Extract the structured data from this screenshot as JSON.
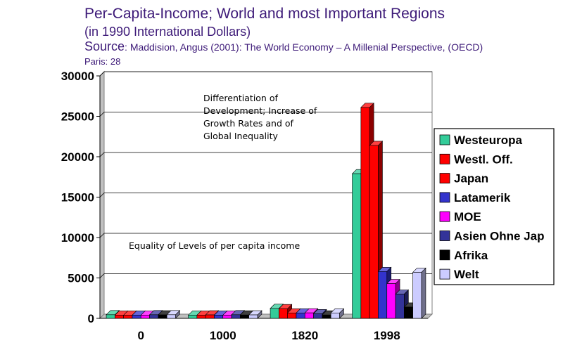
{
  "header": {
    "title": "Per-Capita-Income; World and most Important Regions",
    "subtitle": "(in 1990 International Dollars)",
    "source_label": "Source",
    "source_text": ": Maddision, Angus (2001): The World Economy – A Millenial Perspective, (OECD)",
    "source_line2": "Paris: 28"
  },
  "chart_data": {
    "type": "bar",
    "categories": [
      "0",
      "1000",
      "1820",
      "1998"
    ],
    "series": [
      {
        "name": "Westeuropa",
        "color": "#33cc99",
        "values": [
          450,
          400,
          1230,
          17900
        ]
      },
      {
        "name": "Westl. Off.",
        "color": "#ff0000",
        "values": [
          400,
          400,
          1200,
          26100
        ]
      },
      {
        "name": "Japan",
        "color": "#ff0000",
        "values": [
          400,
          430,
          670,
          21400
        ]
      },
      {
        "name": "Latamerik",
        "color": "#3333cc",
        "values": [
          400,
          400,
          670,
          5800
        ]
      },
      {
        "name": "MOE",
        "color": "#ff00ff",
        "values": [
          400,
          400,
          680,
          4300
        ]
      },
      {
        "name": "Asien Ohne Jap",
        "color": "#333399",
        "values": [
          450,
          450,
          580,
          3000
        ]
      },
      {
        "name": "Afrika",
        "color": "#000000",
        "values": [
          430,
          420,
          420,
          1400
        ]
      },
      {
        "name": "Welt",
        "color": "#ccccff",
        "values": [
          450,
          430,
          670,
          5700
        ]
      }
    ],
    "ylim": [
      0,
      30000
    ],
    "yticks": [
      0,
      5000,
      10000,
      15000,
      20000,
      25000,
      30000
    ],
    "grid": true,
    "legend_position": "right",
    "annotations": [
      {
        "lines": [
          "Differentiation of",
          "Development; Increase of",
          "Growth Rates and of",
          "Global Inequality"
        ]
      },
      {
        "lines": [
          "Equality of Levels of per capita income"
        ]
      }
    ]
  }
}
